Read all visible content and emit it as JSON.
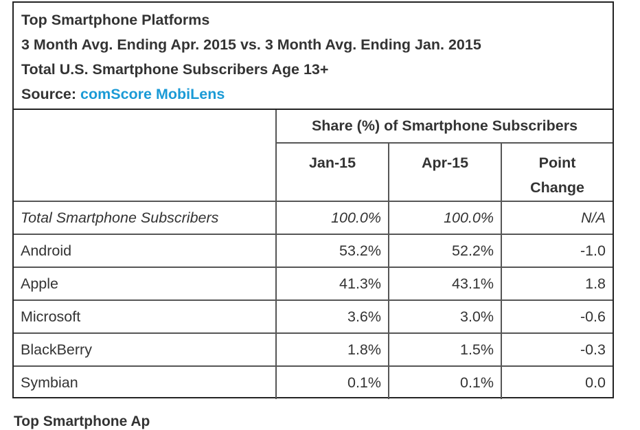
{
  "header": {
    "title": "Top Smartphone Platforms",
    "line2": "3 Month Avg. Ending Apr. 2015 vs. 3 Month Avg. Ending Jan. 2015",
    "line3": "Total U.S. Smartphone Subscribers Age 13+",
    "source_label": "Source: ",
    "source_link": "comScore MobiLens",
    "link_color": "#1a9ad6"
  },
  "chart_data": {
    "type": "table",
    "group_header": "Share (%) of Smartphone Subscribers",
    "columns": [
      "Jan-15",
      "Apr-15",
      "Point Change"
    ],
    "column_labels": {
      "point_line1": "Point",
      "point_line2": "Change"
    },
    "rows": [
      {
        "label": "Total Smartphone Subscribers",
        "jan": "100.0%",
        "apr": "100.0%",
        "change": "N/A"
      },
      {
        "label": "Android",
        "jan": "53.2%",
        "apr": "52.2%",
        "change": "-1.0"
      },
      {
        "label": "Apple",
        "jan": "41.3%",
        "apr": "43.1%",
        "change": "1.8"
      },
      {
        "label": "Microsoft",
        "jan": "3.6%",
        "apr": "3.0%",
        "change": "-0.6"
      },
      {
        "label": "BlackBerry",
        "jan": "1.8%",
        "apr": "1.5%",
        "change": "-0.3"
      },
      {
        "label": "Symbian",
        "jan": "0.1%",
        "apr": "0.1%",
        "change": "0.0"
      }
    ]
  },
  "footer": {
    "partial_text": "Top Smartphone Ap"
  }
}
